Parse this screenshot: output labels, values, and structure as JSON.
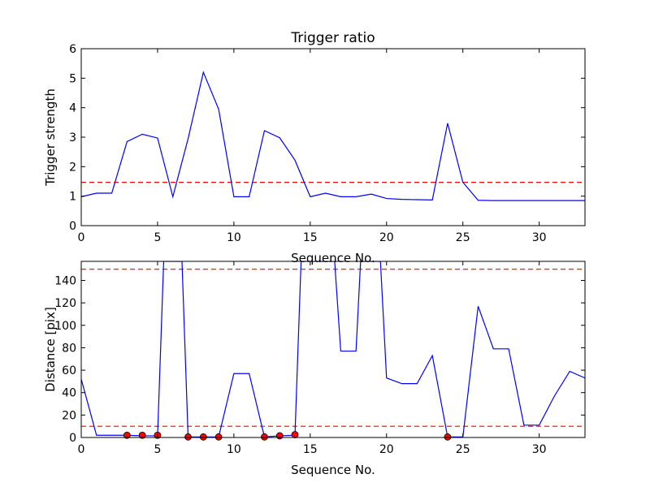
{
  "chart_data": [
    {
      "type": "line",
      "title": "Trigger ratio",
      "xlabel": "Sequence No.",
      "ylabel": "Trigger strength",
      "xlim": [
        0,
        33
      ],
      "ylim": [
        0,
        6
      ],
      "xticks": [
        "0",
        "5",
        "10",
        "15",
        "20",
        "25",
        "30"
      ],
      "yticks": [
        "0",
        "1",
        "2",
        "3",
        "4",
        "5",
        "6"
      ],
      "grid": false,
      "line_color": "#0000ff",
      "threshold_color": "#ff0000",
      "series": [
        {
          "x": [
            0,
            1,
            2,
            3,
            4,
            5,
            6,
            7,
            8,
            9,
            10,
            11,
            12,
            13,
            14,
            15,
            16,
            17,
            18,
            19,
            20,
            21,
            22,
            23,
            24,
            25,
            26,
            27,
            28,
            29,
            30,
            31,
            32,
            33
          ],
          "values": [
            0.98,
            1.1,
            1.1,
            2.85,
            3.1,
            2.97,
            0.98,
            2.95,
            5.2,
            3.95,
            0.98,
            0.98,
            3.22,
            2.98,
            2.22,
            0.98,
            1.1,
            0.98,
            0.98,
            1.07,
            0.92,
            0.89,
            0.88,
            0.87,
            3.47,
            1.47,
            0.86,
            0.85,
            0.85,
            0.85,
            0.85,
            0.85,
            0.85,
            0.85
          ]
        }
      ],
      "thresholds": [
        1.47
      ]
    },
    {
      "type": "line",
      "title": "",
      "xlabel": "Sequence No.",
      "ylabel": "Distance [pix]",
      "xlim": [
        0,
        33
      ],
      "ylim": [
        0,
        157
      ],
      "xticks": [
        "0",
        "5",
        "10",
        "15",
        "20",
        "25",
        "30"
      ],
      "yticks": [
        "0",
        "20",
        "40",
        "60",
        "80",
        "100",
        "120",
        "140"
      ],
      "grid": false,
      "line_color": "#0000ff",
      "threshold_color": "#ff0000",
      "marker_color": "#ff0000",
      "series": [
        {
          "x": [
            0,
            1,
            2,
            3,
            4,
            5,
            5.4,
            6.6,
            7,
            8,
            9,
            10,
            11,
            12,
            13,
            14,
            14.4,
            16.6,
            17,
            18,
            18.3,
            19.6,
            20,
            21,
            22,
            23,
            24,
            25,
            26,
            27,
            28,
            29,
            30,
            31,
            32,
            33
          ],
          "values": [
            52,
            2,
            2,
            2,
            1.5,
            1.5,
            157,
            157,
            0.5,
            0.5,
            0.5,
            57,
            57,
            0.5,
            1.5,
            2,
            157,
            157,
            77,
            77,
            157,
            157,
            53,
            48,
            48,
            73,
            0.5,
            0.5,
            117,
            79,
            79,
            11,
            11,
            37,
            59,
            53
          ]
        }
      ],
      "markers": {
        "x": [
          3,
          4,
          5,
          7,
          8,
          9,
          12,
          13,
          14,
          24
        ],
        "values": [
          2,
          2,
          2,
          0.5,
          0.5,
          0.5,
          0.5,
          1.5,
          2.5,
          0.5
        ]
      },
      "thresholds": [
        10,
        150
      ]
    }
  ]
}
